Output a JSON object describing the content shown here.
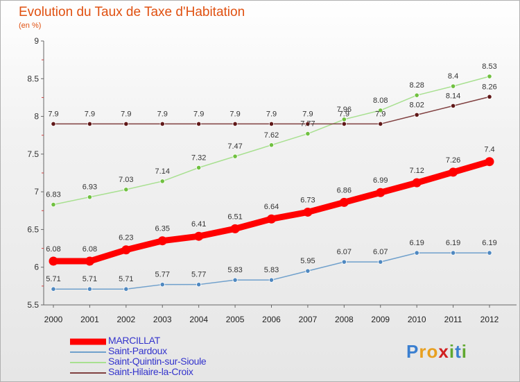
{
  "header": {
    "title": "Evolution du Taux de Taxe d'Habitation",
    "subtitle": "(en %)"
  },
  "logo": {
    "text": "Proxiti"
  },
  "chart_data": {
    "type": "line",
    "title": "Evolution du Taux de Taxe d'Habitation",
    "subtitle": "(en %)",
    "xlabel": "",
    "ylabel": "",
    "x": [
      "2000",
      "2001",
      "2002",
      "2003",
      "2004",
      "2005",
      "2006",
      "2007",
      "2008",
      "2009",
      "2010",
      "2011",
      "2012"
    ],
    "ylim": [
      5.5,
      9
    ],
    "yticks": [
      "5.5",
      "6",
      "6.5",
      "7",
      "7.5",
      "8",
      "8.5",
      "9"
    ],
    "grid": false,
    "legend_placement": "bottom-left",
    "series": [
      {
        "name": "MARCILLAT",
        "color": "#ff0000",
        "point_color": "#ff0000",
        "values": [
          6.08,
          6.08,
          6.23,
          6.35,
          6.41,
          6.51,
          6.64,
          6.73,
          6.86,
          6.99,
          7.12,
          7.26,
          7.4
        ],
        "labels": [
          "6.08",
          "6.08",
          "6.23",
          "6.35",
          "6.41",
          "6.51",
          "6.64",
          "6.73",
          "6.86",
          "6.99",
          "7.12",
          "7.26",
          "7.4"
        ]
      },
      {
        "name": "Saint-Pardoux",
        "color": "#6fa0cc",
        "point_color": "#4f88c0",
        "values": [
          5.71,
          5.71,
          5.71,
          5.77,
          5.77,
          5.83,
          5.83,
          5.95,
          6.07,
          6.07,
          6.19,
          6.19,
          6.19
        ],
        "labels": [
          "5.71",
          "5.71",
          "5.71",
          "5.77",
          "5.77",
          "5.83",
          "5.83",
          "5.95",
          "6.07",
          "6.07",
          "6.19",
          "6.19",
          "6.19"
        ]
      },
      {
        "name": "Saint-Quintin-sur-Sioule",
        "color": "#a8e090",
        "point_color": "#70c040",
        "values": [
          6.83,
          6.93,
          7.03,
          7.14,
          7.32,
          7.47,
          7.62,
          7.77,
          7.96,
          8.08,
          8.28,
          8.4,
          8.53
        ],
        "labels": [
          "6.83",
          "6.93",
          "7.03",
          "7.14",
          "7.32",
          "7.47",
          "7.62",
          "7.77",
          "7.96",
          "8.08",
          "8.28",
          "8.4",
          "8.53"
        ]
      },
      {
        "name": "Saint-Hilaire-la-Croix",
        "color": "#804040",
        "point_color": "#601818",
        "values": [
          7.9,
          7.9,
          7.9,
          7.9,
          7.9,
          7.9,
          7.9,
          7.9,
          7.9,
          7.9,
          8.02,
          8.14,
          8.26
        ],
        "labels": [
          "7.9",
          "7.9",
          "7.9",
          "7.9",
          "7.9",
          "7.9",
          "7.9",
          "7.9",
          "7.9",
          "7.9",
          "8.02",
          "8.14",
          "8.26"
        ]
      }
    ]
  }
}
